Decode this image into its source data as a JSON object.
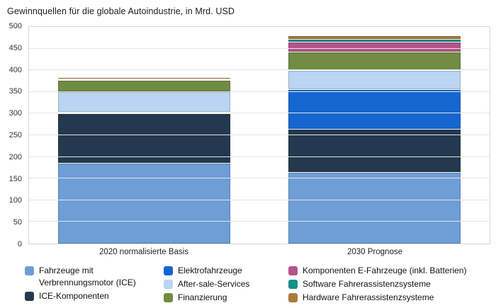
{
  "chart_data": {
    "type": "bar",
    "stacked": true,
    "title": "Gewinnquellen für die globale Autoindustrie, in Mrd. USD",
    "categories": [
      "2020 normalisierte Basis",
      "2030 Prognose"
    ],
    "series": [
      {
        "name": "Fahrzeuge mit Verbrennungsmotor (ICE)",
        "color": "#6d9ed6",
        "values": [
          186,
          165
        ]
      },
      {
        "name": "ICE-Komponenten",
        "color": "#24394f",
        "values": [
          114,
          100
        ]
      },
      {
        "name": "Elektrofahrzeuge",
        "color": "#1666cf",
        "values": [
          4,
          92
        ]
      },
      {
        "name": "After-sale-Services",
        "color": "#b9d5f1",
        "values": [
          47,
          43
        ]
      },
      {
        "name": "Finanzierung",
        "color": "#6f8c42",
        "values": [
          27,
          43
        ]
      },
      {
        "name": "Komponenten E-Fahrzeuge (inkl. Batterien)",
        "color": "#b2548a",
        "values": [
          1,
          22
        ]
      },
      {
        "name": "Software Fahrerassistenzsysteme",
        "color": "#14908a",
        "values": [
          1,
          7
        ]
      },
      {
        "name": "Hardware Fahrerassistenzsysteme",
        "color": "#a87b3e",
        "values": [
          2,
          8
        ]
      }
    ],
    "ylim": [
      0,
      500
    ],
    "ytick_step": 50,
    "grid": true,
    "legend_position": "bottom",
    "legend_columns": [
      [
        0,
        1
      ],
      [
        2,
        3,
        4
      ],
      [
        5,
        6,
        7
      ]
    ],
    "xlabel": "",
    "ylabel": ""
  }
}
